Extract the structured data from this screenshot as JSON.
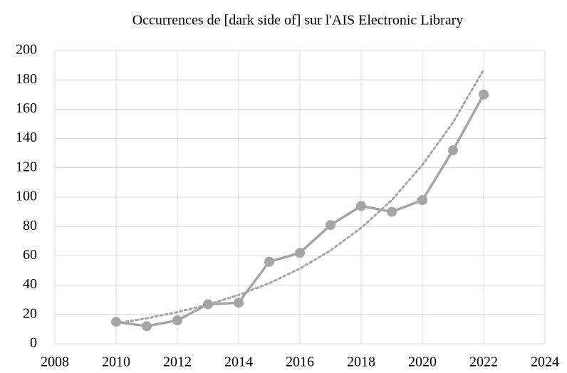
{
  "chart_data": {
    "type": "line",
    "title": "Occurrences de [dark side of] sur l'AIS Electronic Library",
    "x": [
      2010,
      2011,
      2012,
      2013,
      2014,
      2015,
      2016,
      2017,
      2018,
      2019,
      2020,
      2021,
      2022
    ],
    "series": [
      {
        "color": "#a5a5a5",
        "markers": true,
        "dash": "solid",
        "values": [
          15,
          12,
          16,
          27,
          28,
          56,
          62,
          81,
          94,
          90,
          98,
          132,
          170
        ]
      },
      {
        "color": "#a5a5a5",
        "markers": false,
        "dash": "dotted",
        "values": [
          14,
          17.4,
          21.6,
          26.8,
          33.3,
          41.3,
          51.3,
          63.7,
          79,
          98,
          122,
          151,
          187
        ]
      }
    ],
    "xlim": [
      2008,
      2024
    ],
    "xticks": [
      2008,
      2010,
      2012,
      2014,
      2016,
      2018,
      2020,
      2022,
      2024
    ],
    "ylim": [
      0,
      200
    ],
    "yticks": [
      0,
      20,
      40,
      60,
      80,
      100,
      120,
      140,
      160,
      180,
      200
    ],
    "grid": true
  }
}
